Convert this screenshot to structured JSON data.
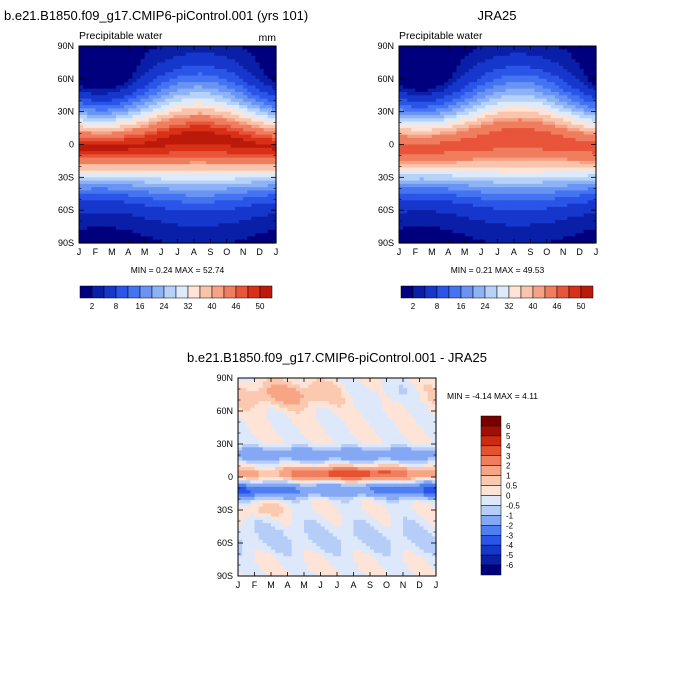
{
  "chart_data": [
    {
      "type": "heatmap",
      "title": "b.e21.B1850.f09_g17.CMIP6-piControl.001 (yrs 101)",
      "subtitle_left": "Precipitable water",
      "subtitle_right": "mm",
      "xlabels": [
        "J",
        "F",
        "M",
        "A",
        "M",
        "J",
        "J",
        "A",
        "S",
        "O",
        "N",
        "D",
        "J"
      ],
      "ylabels": [
        "90N",
        "60N",
        "30N",
        "0",
        "30S",
        "60S",
        "90S"
      ],
      "ylim": [
        -90,
        90
      ],
      "stats": "MIN =  0.24 MAX =  52.74",
      "colorbar": {
        "orientation": "horizontal",
        "ticks": [
          "2",
          "8",
          "16",
          "24",
          "32",
          "40",
          "46",
          "50"
        ]
      },
      "field": {
        "kind": "mean",
        "equator_peak_month": 7.3,
        "peak_value": 52.74,
        "min_value": 0.24
      }
    },
    {
      "type": "heatmap",
      "title": "JRA25",
      "subtitle_left": "Precipitable water",
      "xlabels": [
        "J",
        "F",
        "M",
        "A",
        "M",
        "J",
        "J",
        "A",
        "S",
        "O",
        "N",
        "D",
        "J"
      ],
      "ylabels": [
        "90N",
        "60N",
        "30N",
        "0",
        "30S",
        "60S",
        "90S"
      ],
      "ylim": [
        -90,
        90
      ],
      "stats": "MIN =  0.21 MAX =  49.53",
      "colorbar": {
        "orientation": "horizontal",
        "ticks": [
          "2",
          "8",
          "16",
          "24",
          "32",
          "40",
          "46",
          "50"
        ]
      },
      "field": {
        "kind": "mean",
        "equator_peak_month": 7.3,
        "peak_value": 49.53,
        "min_value": 0.21
      }
    },
    {
      "type": "heatmap",
      "title": "b.e21.B1850.f09_g17.CMIP6-piControl.001 - JRA25",
      "xlabels": [
        "J",
        "F",
        "M",
        "A",
        "M",
        "J",
        "J",
        "A",
        "S",
        "O",
        "N",
        "D",
        "J"
      ],
      "ylabels": [
        "90N",
        "60N",
        "30N",
        "0",
        "30S",
        "60S",
        "90S"
      ],
      "ylim": [
        -90,
        90
      ],
      "stats": "MIN = -4.14 MAX =  4.11",
      "colorbar": {
        "orientation": "vertical",
        "ticks": [
          "6",
          "5",
          "4",
          "3",
          "2",
          "1",
          "0.5",
          "0",
          "-0.5",
          "-1",
          "-2",
          "-3",
          "-4",
          "-5",
          "-6"
        ]
      },
      "field": {
        "kind": "difference",
        "min_value": -4.14,
        "max_value": 4.11
      }
    }
  ],
  "colors": {
    "mean_scale": [
      "#00007f",
      "#0a1fa8",
      "#1637cc",
      "#2a55e8",
      "#4474f2",
      "#6994f4",
      "#8db3f6",
      "#b6d2f8",
      "#ddeafb",
      "#fde4d6",
      "#fac4ac",
      "#f5a285",
      "#f07d5e",
      "#e8553a",
      "#d93018",
      "#bb1a0a",
      "#8c0a00"
    ],
    "diff_scale": [
      "#00007f",
      "#0a1fa8",
      "#1637cc",
      "#2a55e8",
      "#4f7ef0",
      "#84a8f4",
      "#b6cdf7",
      "#dde8fb",
      "#fde4d6",
      "#fbc8b0",
      "#f7a585",
      "#f07d5e",
      "#e5522f",
      "#cc2b12",
      "#9e1006",
      "#7a0000"
    ]
  }
}
